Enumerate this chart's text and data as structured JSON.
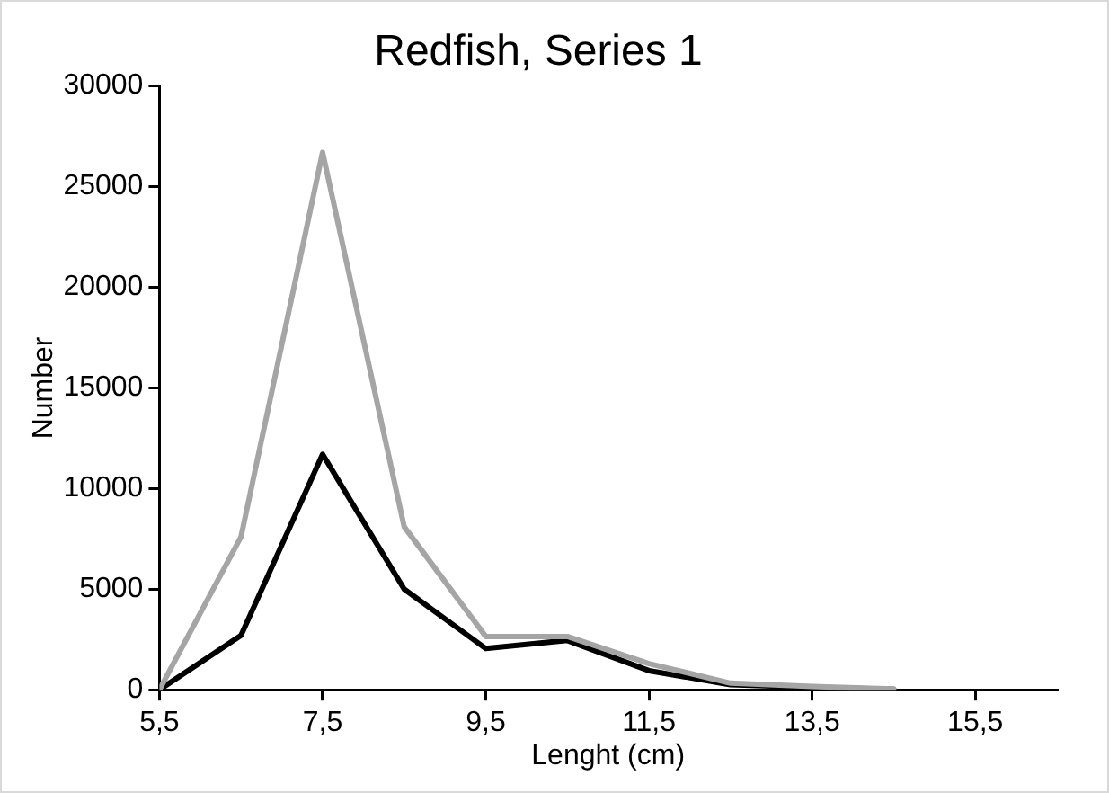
{
  "chart_data": {
    "type": "line",
    "title": "Redfish, Series 1",
    "xlabel": "Lenght (cm)",
    "ylabel": "Number",
    "x": [
      5.5,
      6.5,
      7.5,
      8.5,
      9.5,
      10.5,
      11.5,
      12.5,
      13.5,
      14.5
    ],
    "series": [
      {
        "color": "#a5a5a5",
        "values": [
          0,
          7600,
          26700,
          8100,
          2650,
          2650,
          1300,
          330,
          160,
          40
        ]
      },
      {
        "color": "#000000",
        "values": [
          0,
          2700,
          11700,
          5000,
          2050,
          2450,
          950,
          250,
          120,
          20
        ]
      }
    ],
    "xlim": [
      5.5,
      16.5
    ],
    "xticks": [
      {
        "value": 5.5,
        "label": "5,5"
      },
      {
        "value": 7.5,
        "label": "7,5"
      },
      {
        "value": 9.5,
        "label": "9,5"
      },
      {
        "value": 11.5,
        "label": "11,5"
      },
      {
        "value": 13.5,
        "label": "13,5"
      },
      {
        "value": 15.5,
        "label": "15,5"
      }
    ],
    "ylim": [
      0,
      30000
    ],
    "yticks": [
      0,
      5000,
      10000,
      15000,
      20000,
      25000,
      30000
    ],
    "grid": false,
    "legend": false,
    "marker": "none",
    "line_style": "solid"
  }
}
